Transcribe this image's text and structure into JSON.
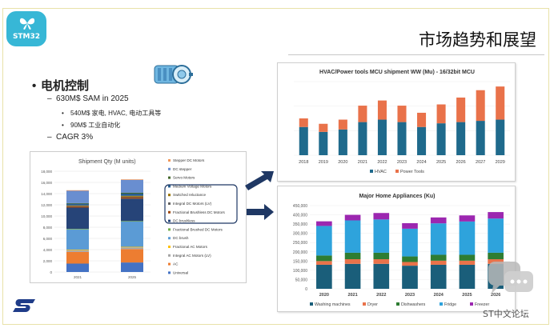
{
  "slide": {
    "title": "市场趋势和展望",
    "logo_text": "STM32",
    "watermark": "ST中文论坛"
  },
  "bullets": [
    {
      "level": 1,
      "text": "电机控制"
    },
    {
      "level": 2,
      "text": "630M$ SAM in 2025"
    },
    {
      "level": 3,
      "text": "540M$ 家电, HVAC, 电动工具等"
    },
    {
      "level": 3,
      "text": "90M$ 工业自动化"
    },
    {
      "level": 2,
      "text": "CAGR 3%"
    }
  ],
  "colors": {
    "accent": "#37b7d6",
    "navy": "#1f3864",
    "teal": "#2e6b8f",
    "orange": "#ed7d31"
  },
  "icons": [
    "st-logo",
    "butterfly-icon",
    "motor-icon",
    "arrow-icon",
    "chat-icon"
  ],
  "chart_data": [
    {
      "type": "bar",
      "title": "Shipment Qty (M units)",
      "categories": [
        "2021",
        "2025"
      ],
      "ylim": [
        0,
        18000
      ],
      "yticks": [
        "0",
        "2,000",
        "4,000",
        "6,000",
        "8,000",
        "10,000",
        "12,000",
        "14,000",
        "16,000",
        "18,000"
      ],
      "series": [
        {
          "name": "Universal",
          "color": "#4472c4",
          "values": [
            1500,
            1700
          ]
        },
        {
          "name": "AC",
          "color": "#ed7d31",
          "values": [
            2100,
            2400
          ]
        },
        {
          "name": "Integral AC Motors (LV)",
          "color": "#a5a5a5",
          "values": [
            300,
            300
          ]
        },
        {
          "name": "Fractional AC Motors",
          "color": "#ffc000",
          "values": [
            100,
            100
          ]
        },
        {
          "name": "DC brush",
          "color": "#5b9bd5",
          "values": [
            3600,
            4500
          ]
        },
        {
          "name": "Fractional Brushed DC Motors",
          "color": "#70ad47",
          "values": [
            100,
            100
          ]
        },
        {
          "name": "DC brushless",
          "color": "#264478",
          "values": [
            3800,
            4000
          ]
        },
        {
          "name": "Fractional Brushless DC Motors",
          "color": "#9e480e",
          "values": [
            200,
            250
          ]
        },
        {
          "name": "Integral DC Motors (LV)",
          "color": "#636363",
          "values": [
            100,
            100
          ]
        },
        {
          "name": "Switched reluctance",
          "color": "#997300",
          "values": [
            100,
            150
          ]
        },
        {
          "name": "Medium Voltage Motors",
          "color": "#255e91",
          "values": [
            300,
            400
          ]
        },
        {
          "name": "Servo Motors",
          "color": "#43682b",
          "values": [
            100,
            150
          ]
        },
        {
          "name": "DC stepper",
          "color": "#698ed0",
          "values": [
            2200,
            2300
          ]
        },
        {
          "name": "Stepper DC Motors",
          "color": "#f1975a",
          "values": [
            100,
            100
          ]
        }
      ]
    },
    {
      "type": "bar",
      "title": "HVAC/Power tools MCU shipment WW (Mu)  - 16/32bit MCU",
      "categories": [
        "2018",
        "2019",
        "2020",
        "2021",
        "2022",
        "2023",
        "2024",
        "2025",
        "2026",
        "2027",
        "2029"
      ],
      "ylim": [
        0,
        300
      ],
      "series": [
        {
          "name": "HVAC",
          "color": "#1f6a8c",
          "values": [
            115,
            95,
            105,
            135,
            145,
            135,
            115,
            130,
            135,
            140,
            145
          ]
        },
        {
          "name": "Power Tools",
          "color": "#e9724a",
          "values": [
            35,
            33,
            40,
            67,
            78,
            67,
            58,
            77,
            100,
            125,
            135
          ]
        }
      ]
    },
    {
      "type": "bar",
      "title": "Major Home Appliances (Ku)",
      "categories": [
        "2020",
        "2021",
        "2022",
        "2023",
        "2024",
        "2025",
        "2026"
      ],
      "ylim": [
        0,
        450000
      ],
      "yticks": [
        "0",
        "50,000",
        "100,000",
        "150,000",
        "200,000",
        "250,000",
        "300,000",
        "350,000",
        "400,000",
        "450,000"
      ],
      "series": [
        {
          "name": "Washing machines",
          "color": "#1a5e7a",
          "values": [
            130000,
            135000,
            135000,
            125000,
            130000,
            130000,
            135000
          ]
        },
        {
          "name": "Dryer",
          "color": "#e9724a",
          "values": [
            20000,
            25000,
            25000,
            20000,
            22000,
            22000,
            25000
          ]
        },
        {
          "name": "Dishwashers",
          "color": "#2e7d32",
          "values": [
            30000,
            35000,
            35000,
            30000,
            32000,
            32000,
            35000
          ]
        },
        {
          "name": "Fridge",
          "color": "#2ea3dc",
          "values": [
            160000,
            175000,
            180000,
            150000,
            170000,
            180000,
            185000
          ]
        },
        {
          "name": "Freezer",
          "color": "#9c27b0",
          "values": [
            25000,
            30000,
            35000,
            30000,
            32000,
            33000,
            35000
          ]
        }
      ]
    }
  ]
}
